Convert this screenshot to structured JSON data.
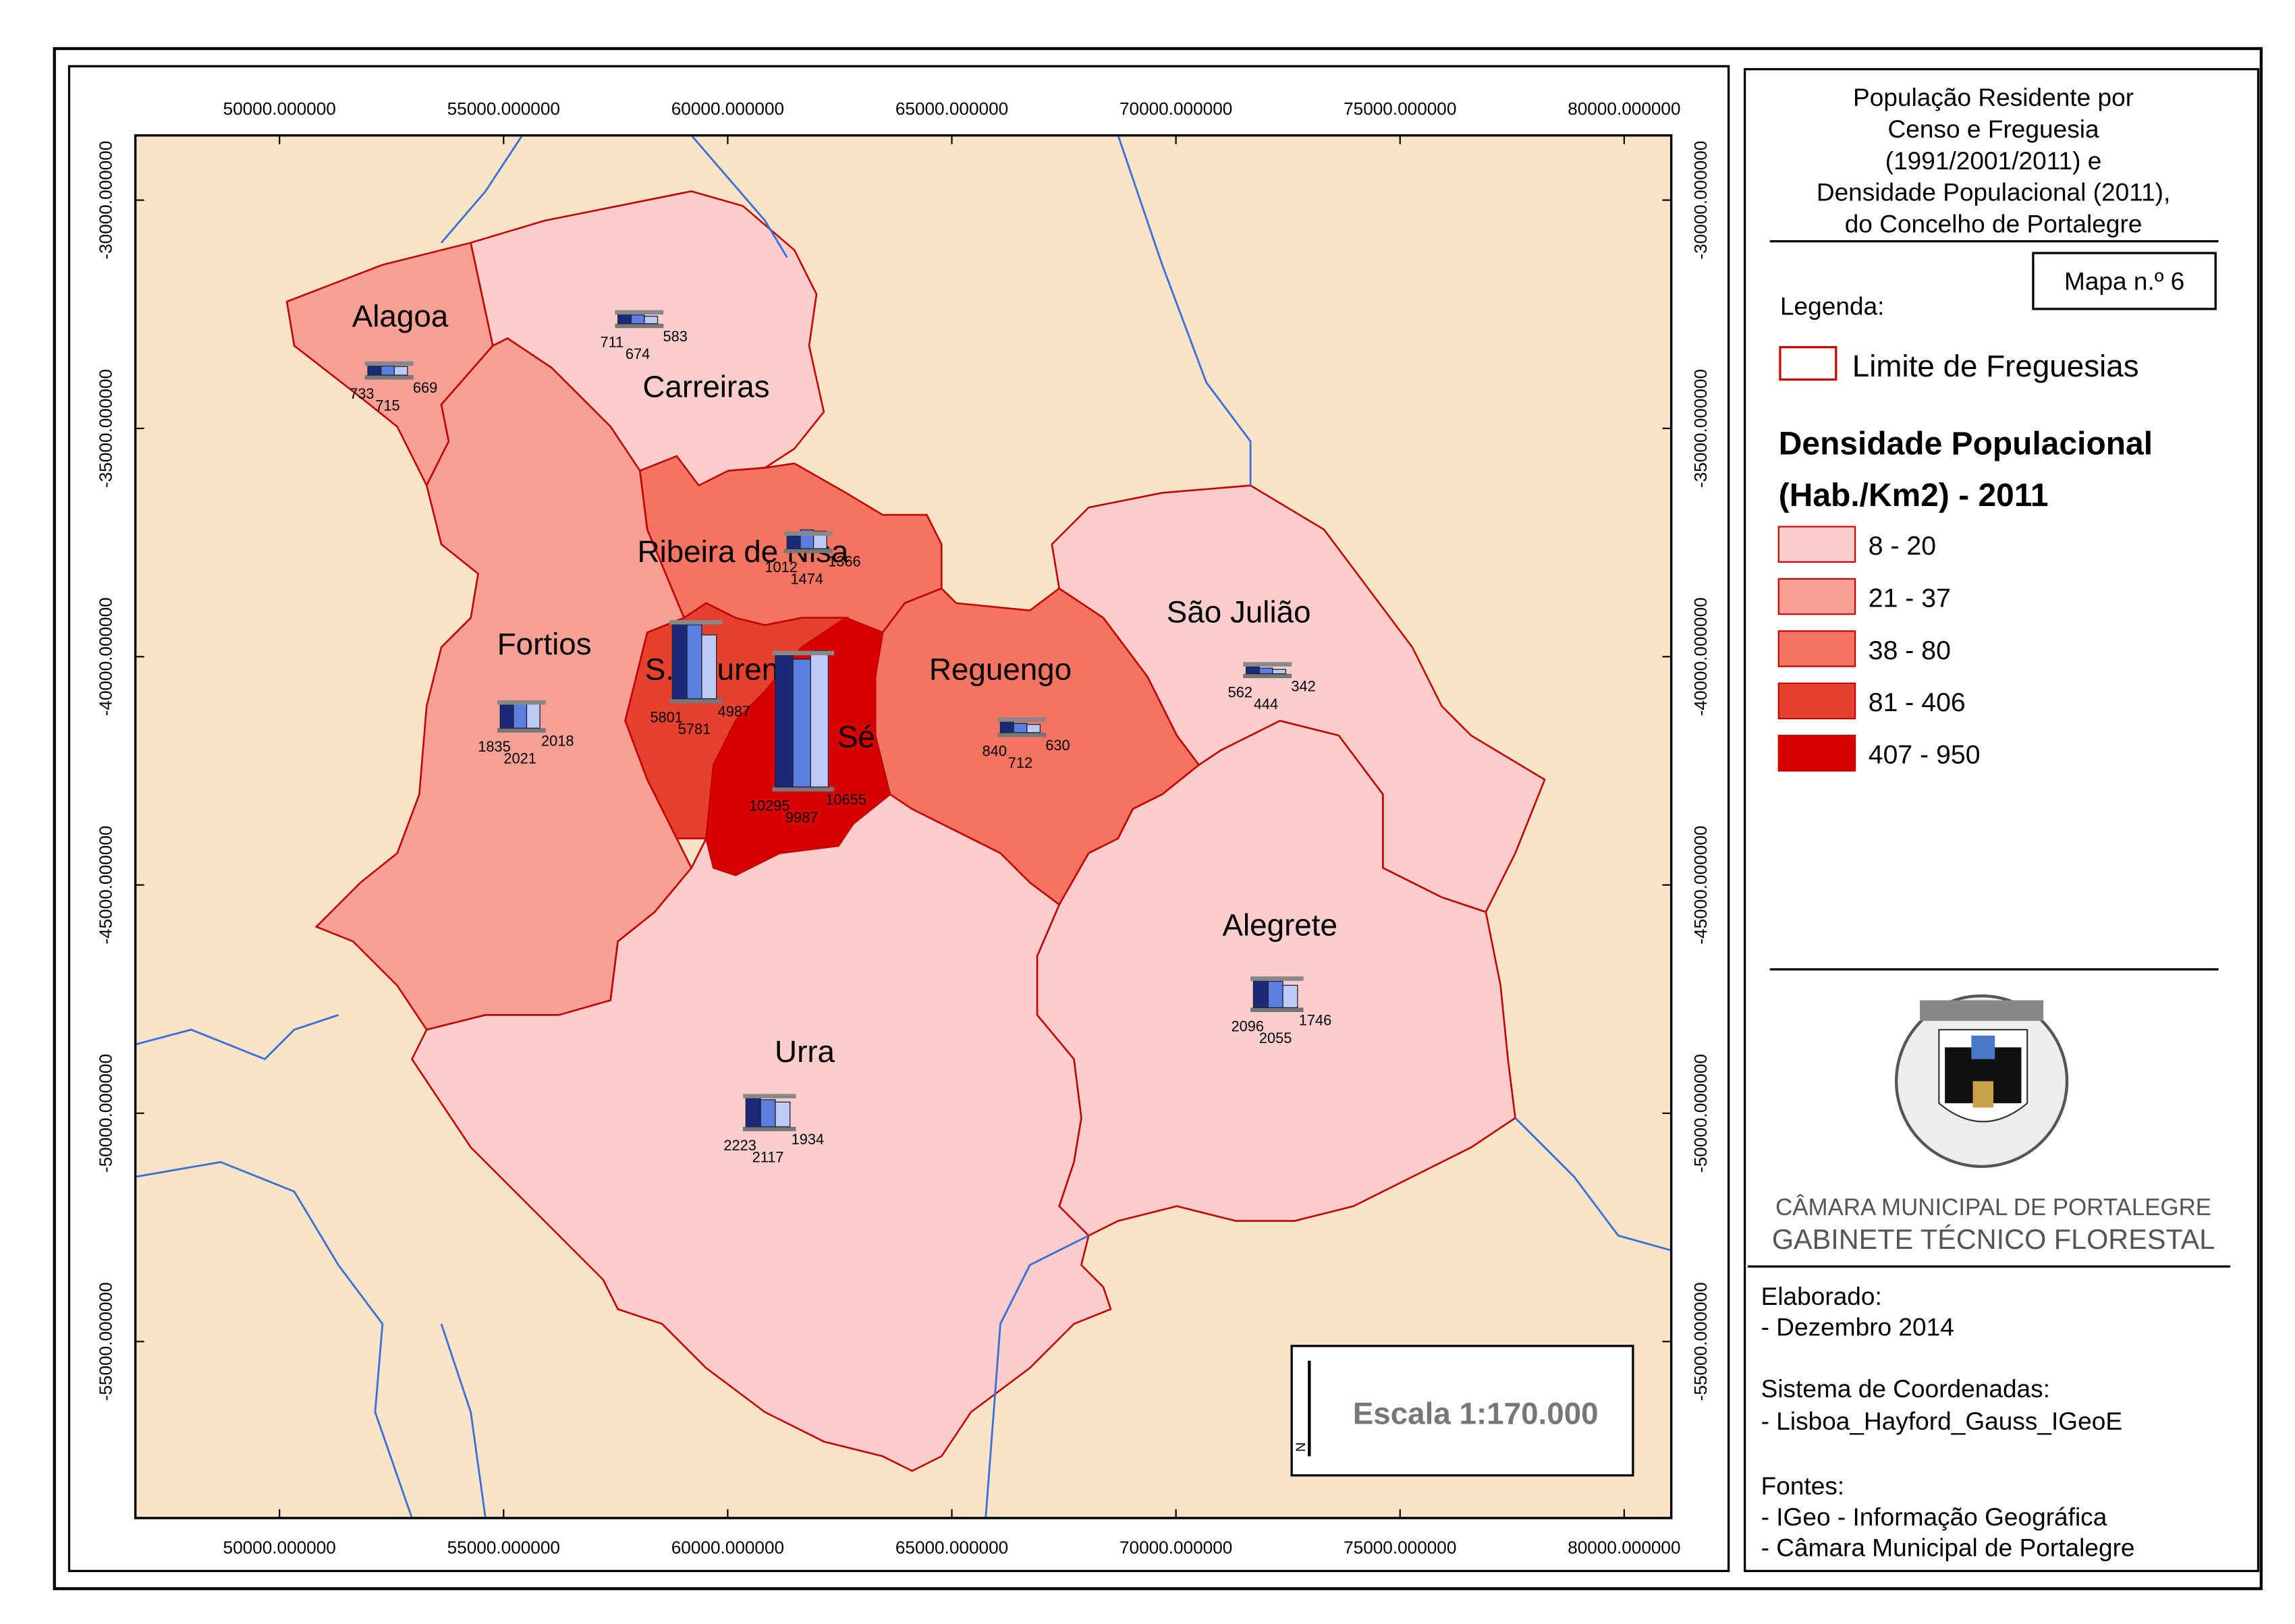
{
  "title_lines": [
    "População Residente por",
    "Censo e Freguesia",
    "(1991/2001/2011) e",
    "Densidade Populacional (2011),",
    "do Concelho de Portalegre"
  ],
  "legend": {
    "map_number": "Mapa n.º 6",
    "heading": "Legenda:",
    "boundary": "Limite de Freguesias",
    "density_title": [
      "Densidade Populacional",
      "(Hab./Km2) - 2011"
    ],
    "classes": [
      {
        "label": "8 - 20",
        "color": "#fbcdcd"
      },
      {
        "label": "21 - 37",
        "color": "#f7a095"
      },
      {
        "label": "38 - 80",
        "color": "#f37461"
      },
      {
        "label": "81 - 406",
        "color": "#e6402f"
      },
      {
        "label": "407 - 950",
        "color": "#d80000"
      }
    ]
  },
  "axes": {
    "xlim": [
      46784,
      81050
    ],
    "ylim": [
      -58866,
      -28582
    ],
    "xticks": [
      {
        "value": 50000,
        "label": "50000.000000"
      },
      {
        "value": 55000,
        "label": "55000.000000"
      },
      {
        "value": 60000,
        "label": "60000.000000"
      },
      {
        "value": 65000,
        "label": "65000.000000"
      },
      {
        "value": 70000,
        "label": "70000.000000"
      },
      {
        "value": 75000,
        "label": "75000.000000"
      },
      {
        "value": 80000,
        "label": "80000.000000"
      }
    ],
    "yticks": [
      {
        "value": -30000,
        "label": "-30000.000000"
      },
      {
        "value": -35000,
        "label": "-35000.000000"
      },
      {
        "value": -40000,
        "label": "-40000.000000"
      },
      {
        "value": -45000,
        "label": "-45000.000000"
      },
      {
        "value": -50000,
        "label": "-50000.000000"
      },
      {
        "value": -55000,
        "label": "-55000.000000"
      }
    ]
  },
  "parishes": [
    {
      "name": "Alagoa",
      "color": "#f7a095",
      "population": [
        733,
        715,
        669
      ]
    },
    {
      "name": "Carreiras",
      "color": "#fbcdcd",
      "population": [
        711,
        674,
        583
      ]
    },
    {
      "name": "Fortios",
      "color": "#f7a095",
      "population": [
        1835,
        2021,
        2018
      ]
    },
    {
      "name": "Ribeira de Nisa",
      "color": "#f37461",
      "population": [
        1012,
        1474,
        1366
      ]
    },
    {
      "name": "S. Lourenço",
      "color": "#e6402f",
      "population": [
        5801,
        5781,
        4987
      ]
    },
    {
      "name": "Sé",
      "color": "#d80000",
      "population": [
        10295,
        9987,
        10655
      ]
    },
    {
      "name": "Reguengo",
      "color": "#f37461",
      "population": [
        840,
        712,
        630
      ]
    },
    {
      "name": "São Julião",
      "color": "#fbcdcd",
      "population": [
        562,
        444,
        342
      ]
    },
    {
      "name": "Alegrete",
      "color": "#fbcdcd",
      "population": [
        2096,
        2055,
        1746
      ]
    },
    {
      "name": "Urra",
      "color": "#fbcdcd",
      "population": [
        2223,
        2117,
        1934
      ]
    }
  ],
  "scale": {
    "text": "Escala 1:170.000",
    "north": "N"
  },
  "credits": {
    "organization": "CÂMARA MUNICIPAL DE PORTALEGRE",
    "unit": "GABINETE TÉCNICO FLORESTAL",
    "notes": [
      "Elaborado:",
      "- Dezembro 2014",
      "Sistema de Coordenadas:",
      "- Lisboa_Hayford_Gauss_IGeoE",
      "Fontes:",
      "- IGeo - Informação Geográfica",
      "- Câmara Municipal de Portalegre"
    ]
  }
}
